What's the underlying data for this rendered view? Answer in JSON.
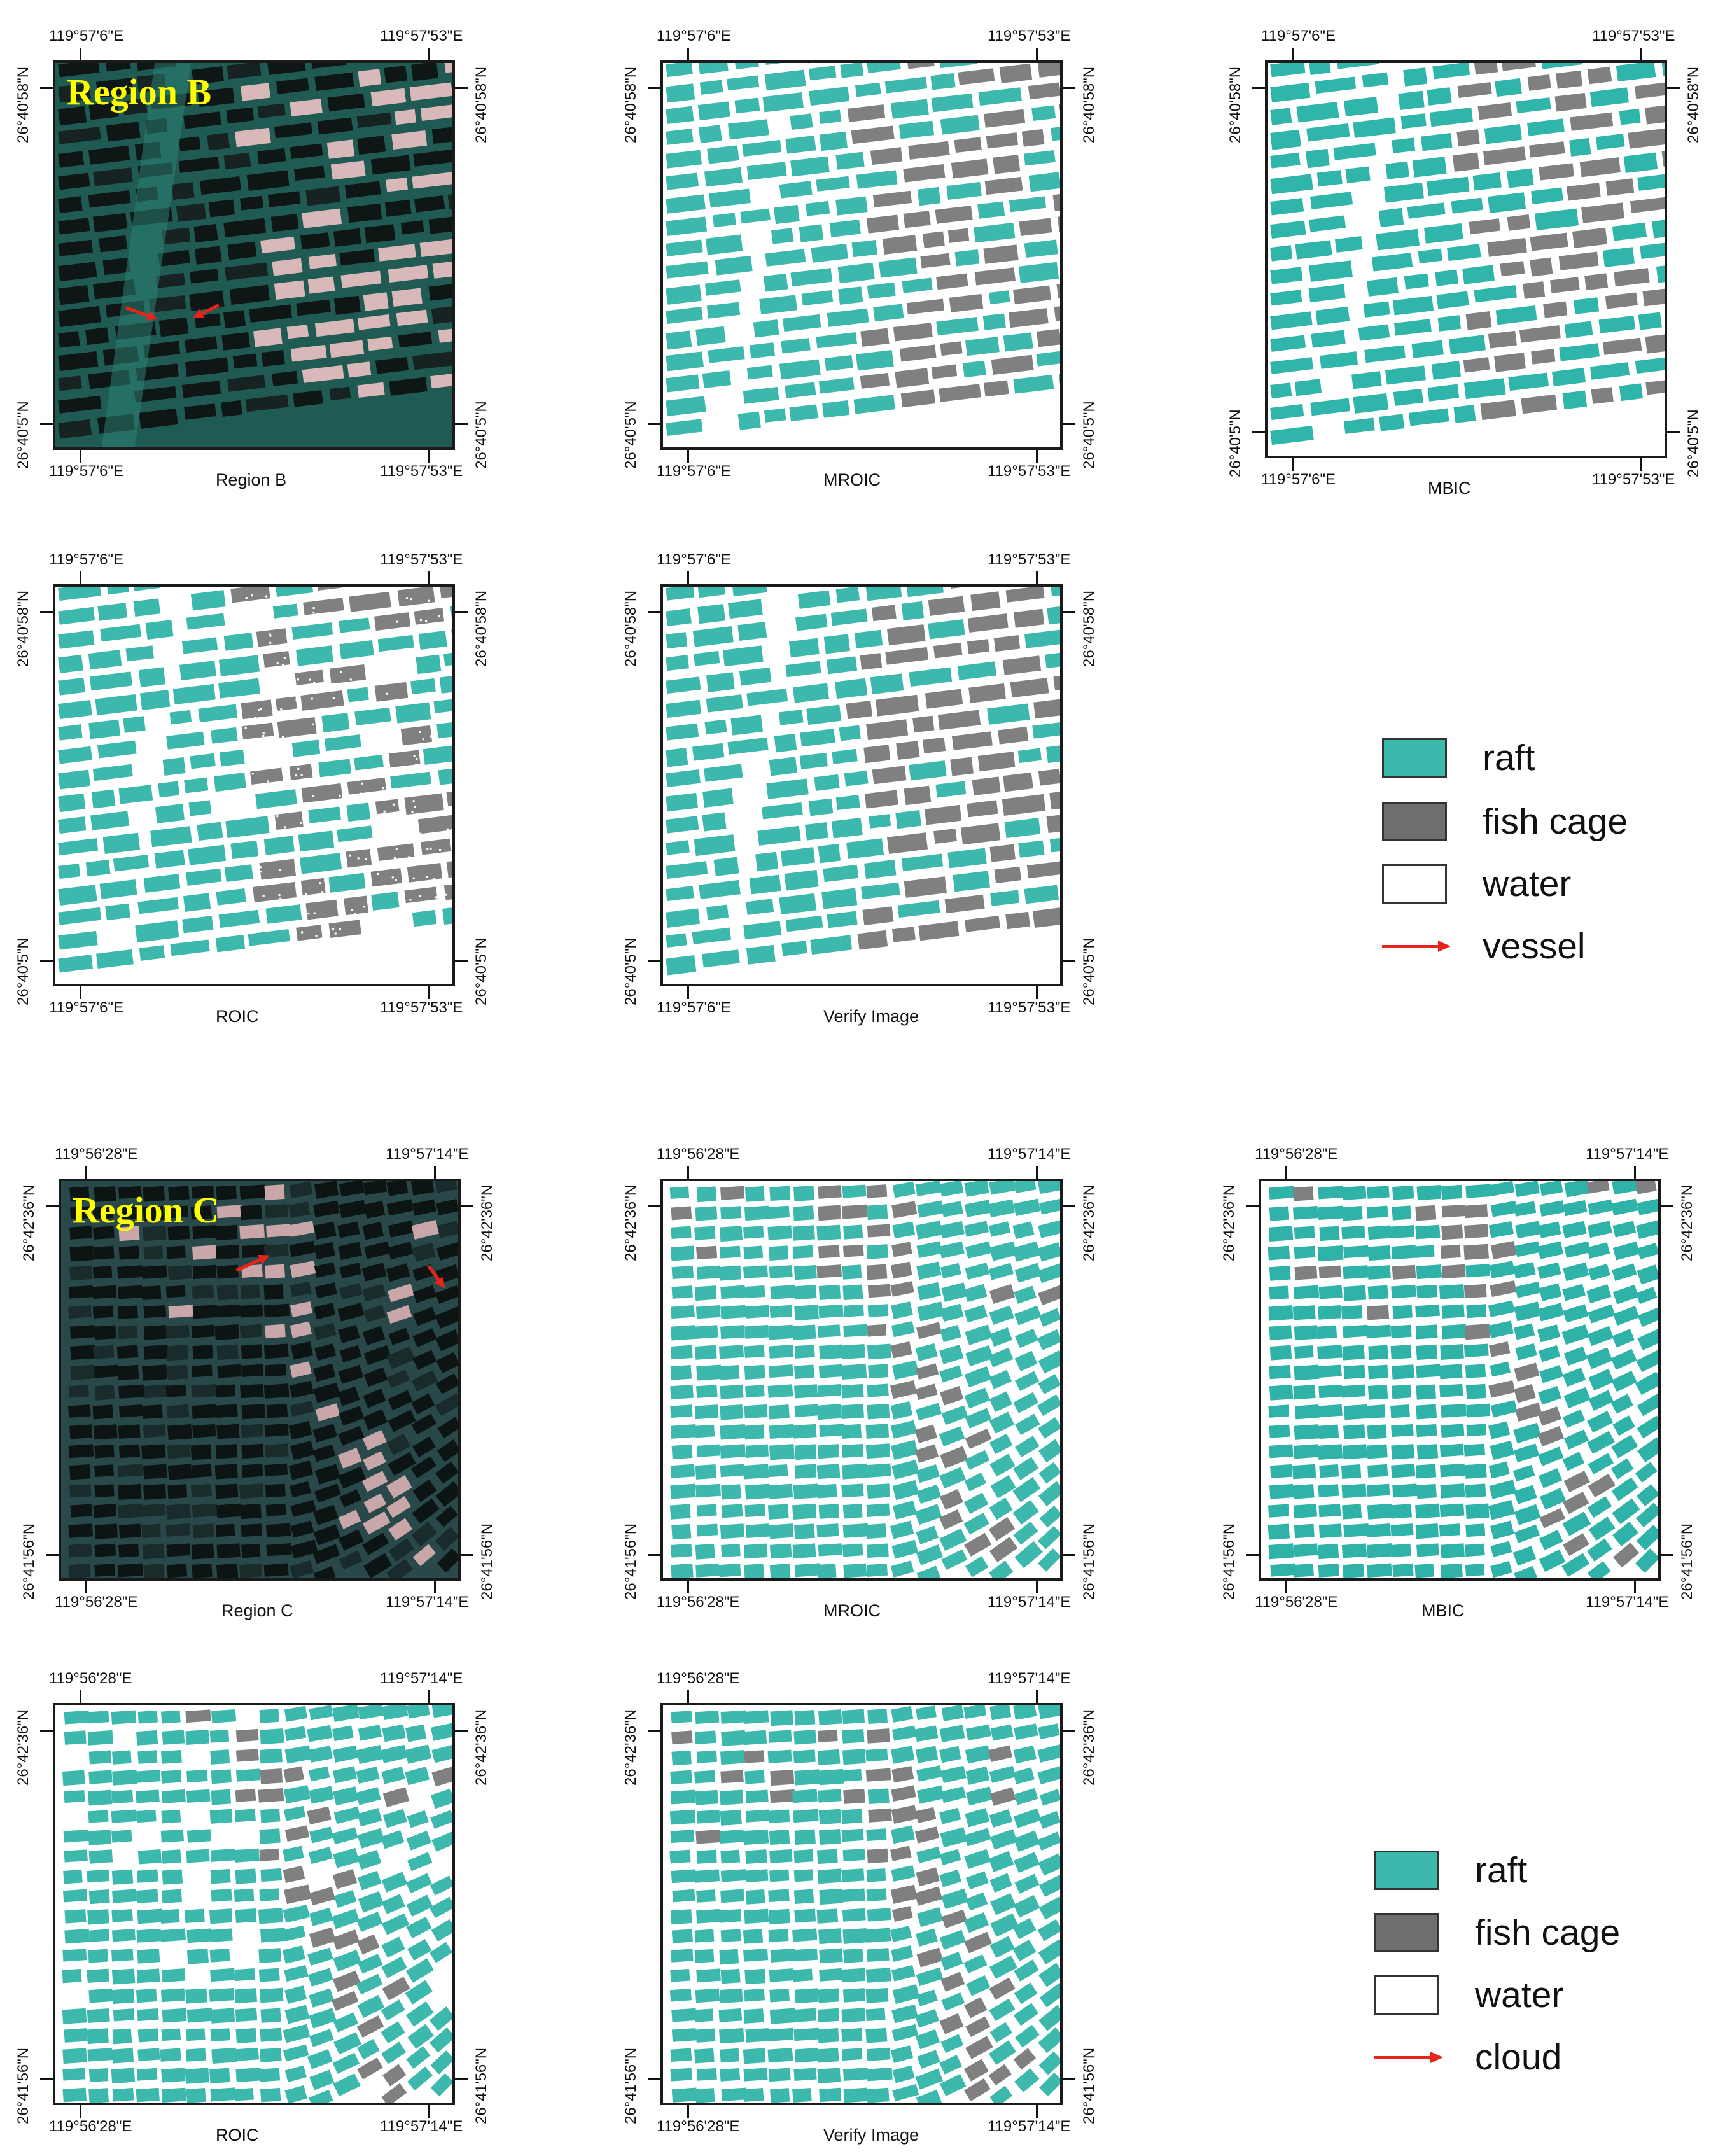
{
  "colors": {
    "raft": "#3cb8ad",
    "fish_cage": "#808080",
    "water": "#ffffff",
    "arrow": "#e8231c",
    "label": "#ffff00"
  },
  "region_b": {
    "lon_left": "119°57'6\"E",
    "lon_right": "119°57'53\"E",
    "lat_top": "26°40'58\"N",
    "lat_bottom": "26°40'5\"N",
    "overlay_label": "Region B",
    "captions": {
      "image": "Region B",
      "mroic": "MROIC",
      "mbic": "MBIC",
      "roic": "ROIC",
      "verify": "Verify Image"
    }
  },
  "region_c": {
    "lon_left": "119°56'28\"E",
    "lon_right": "119°57'14\"E",
    "lat_top": "26°42'36\"N",
    "lat_bottom": "26°41'56\"N",
    "overlay_label": "Region C",
    "captions": {
      "image": "Region C",
      "mroic": "MROIC",
      "mbic": "MBIC",
      "roic": "ROIC",
      "verify": "Verify Image"
    }
  },
  "legend_b": [
    {
      "label": "raft",
      "icon": "teal-swatch"
    },
    {
      "label": "fish cage",
      "icon": "gray-swatch"
    },
    {
      "label": "water",
      "icon": "white-swatch"
    },
    {
      "label": "vessel",
      "icon": "red-arrow-icon"
    }
  ],
  "legend_c": [
    {
      "label": "raft",
      "icon": "teal-swatch"
    },
    {
      "label": "fish cage",
      "icon": "gray-swatch"
    },
    {
      "label": "water",
      "icon": "white-swatch"
    },
    {
      "label": "cloud",
      "icon": "red-arrow-icon"
    }
  ]
}
